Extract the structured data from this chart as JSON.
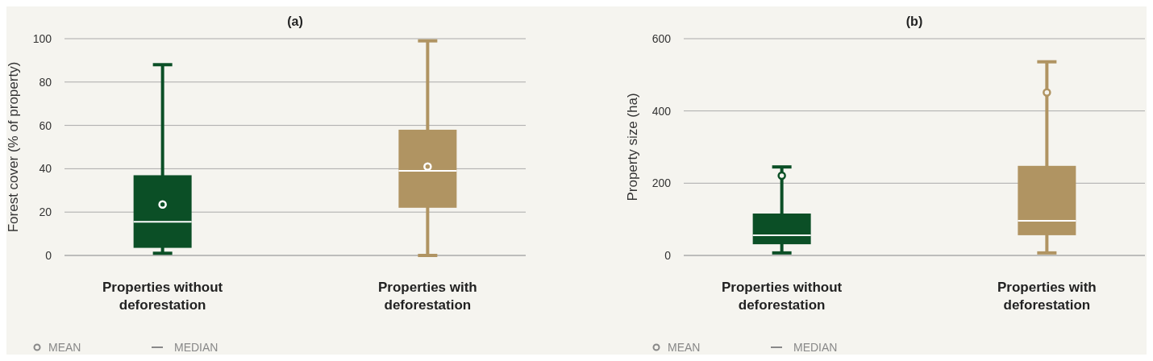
{
  "chart_data": [
    {
      "type": "box",
      "title": "(a)",
      "ylabel": "Forest cover (% of property)",
      "categories": [
        "Properties without deforestation",
        "Properties with deforestation"
      ],
      "colors": [
        "#0b4f26",
        "#b09462"
      ],
      "boxes": [
        {
          "low": 1,
          "q1": 3.5,
          "median": 15.5,
          "q3": 37,
          "high": 88,
          "mean": 23.5
        },
        {
          "low": 0,
          "q1": 22,
          "median": 39,
          "q3": 58,
          "high": 99,
          "mean": 41
        }
      ],
      "ylim": [
        0,
        100
      ],
      "yticks": [
        0,
        20,
        40,
        60,
        80,
        100
      ],
      "grid": "y",
      "annotations": [
        "MEAN",
        "MEDIAN"
      ]
    },
    {
      "type": "box",
      "title": "(b)",
      "ylabel": "Property size (ha)",
      "categories": [
        "Properties without deforestation",
        "Properties with deforestation"
      ],
      "colors": [
        "#0b4f26",
        "#b09462"
      ],
      "boxes": [
        {
          "low": 7,
          "q1": 31,
          "median": 56,
          "q3": 116,
          "high": 245,
          "mean": 221
        },
        {
          "low": 7,
          "q1": 56,
          "median": 96,
          "q3": 248,
          "high": 536,
          "mean": 451
        }
      ],
      "ylim": [
        0,
        600
      ],
      "yticks": [
        0,
        200,
        400,
        600
      ],
      "grid": "y",
      "annotations": [
        "MEAN",
        "MEDIAN"
      ]
    }
  ]
}
